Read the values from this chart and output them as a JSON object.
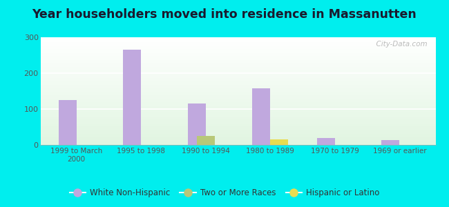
{
  "title": "Year householders moved into residence in Massanutten",
  "categories": [
    "1999 to March\n2000",
    "1995 to 1998",
    "1990 to 1994",
    "1980 to 1989",
    "1970 to 1979",
    "1969 or earlier"
  ],
  "series": {
    "White Non-Hispanic": [
      125,
      265,
      115,
      157,
      20,
      13
    ],
    "Two or More Races": [
      0,
      0,
      25,
      0,
      0,
      0
    ],
    "Hispanic or Latino": [
      0,
      0,
      0,
      16,
      0,
      0
    ]
  },
  "colors": {
    "White Non-Hispanic": "#c0a8de",
    "Two or More Races": "#b8c878",
    "Hispanic or Latino": "#e8dc50"
  },
  "ylim": [
    0,
    300
  ],
  "yticks": [
    0,
    100,
    200,
    300
  ],
  "bar_width": 0.28,
  "group_width": 0.65,
  "background_outer": "#00eeee",
  "watermark": "  City-Data.com",
  "legend_entries": [
    "White Non-Hispanic",
    "Two or More Races",
    "Hispanic or Latino"
  ]
}
